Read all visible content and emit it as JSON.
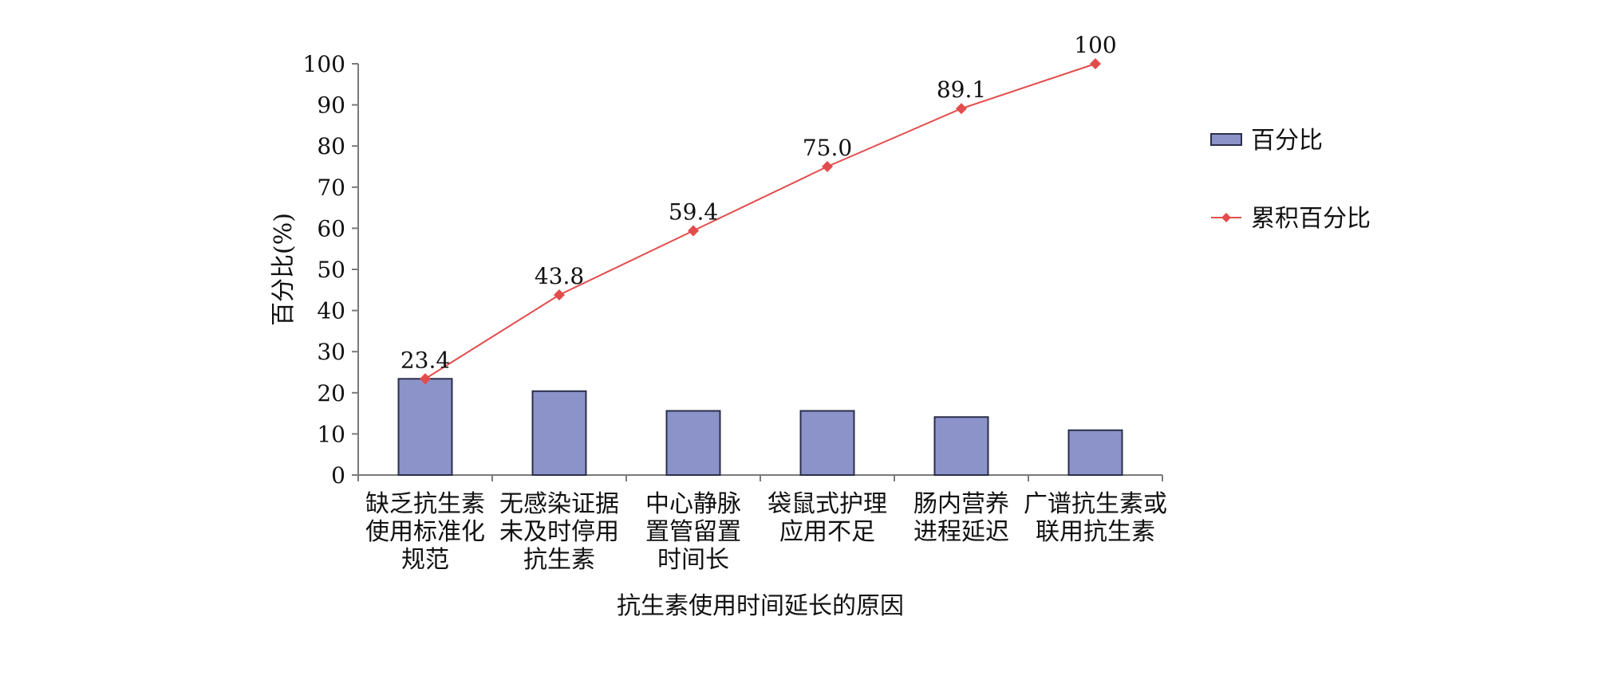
{
  "chart_data": {
    "type": "bar",
    "xlabel": "抗生素使用时间延长的原因",
    "ylabel": "百分比(%)",
    "ylim": [
      0,
      100
    ],
    "yticks": [
      0,
      10,
      20,
      30,
      40,
      50,
      60,
      70,
      80,
      90,
      100
    ],
    "grid": false,
    "legend_position": "right",
    "categories": [
      [
        "缺乏抗生素",
        "使用标准化",
        "规范"
      ],
      [
        "无感染证据",
        "未及时停用",
        "抗生素"
      ],
      [
        "中心静脉",
        "置管留置",
        "时间长"
      ],
      [
        "袋鼠式护理",
        "应用不足"
      ],
      [
        "肠内营养",
        "进程延迟"
      ],
      [
        "广谱抗生素或",
        "联用抗生素"
      ]
    ],
    "series": [
      {
        "name": "百分比",
        "type": "bar",
        "color": "#8b93c9",
        "values": [
          23.4,
          20.4,
          15.6,
          15.6,
          14.1,
          10.9
        ]
      },
      {
        "name": "累积百分比",
        "type": "line",
        "color": "#e34c4c",
        "marker": "diamond",
        "values": [
          23.4,
          43.8,
          59.4,
          75.0,
          89.1,
          100
        ],
        "labels": [
          "23.4",
          "43.8",
          "59.4",
          "75.0",
          "89.1",
          "100"
        ]
      }
    ]
  }
}
